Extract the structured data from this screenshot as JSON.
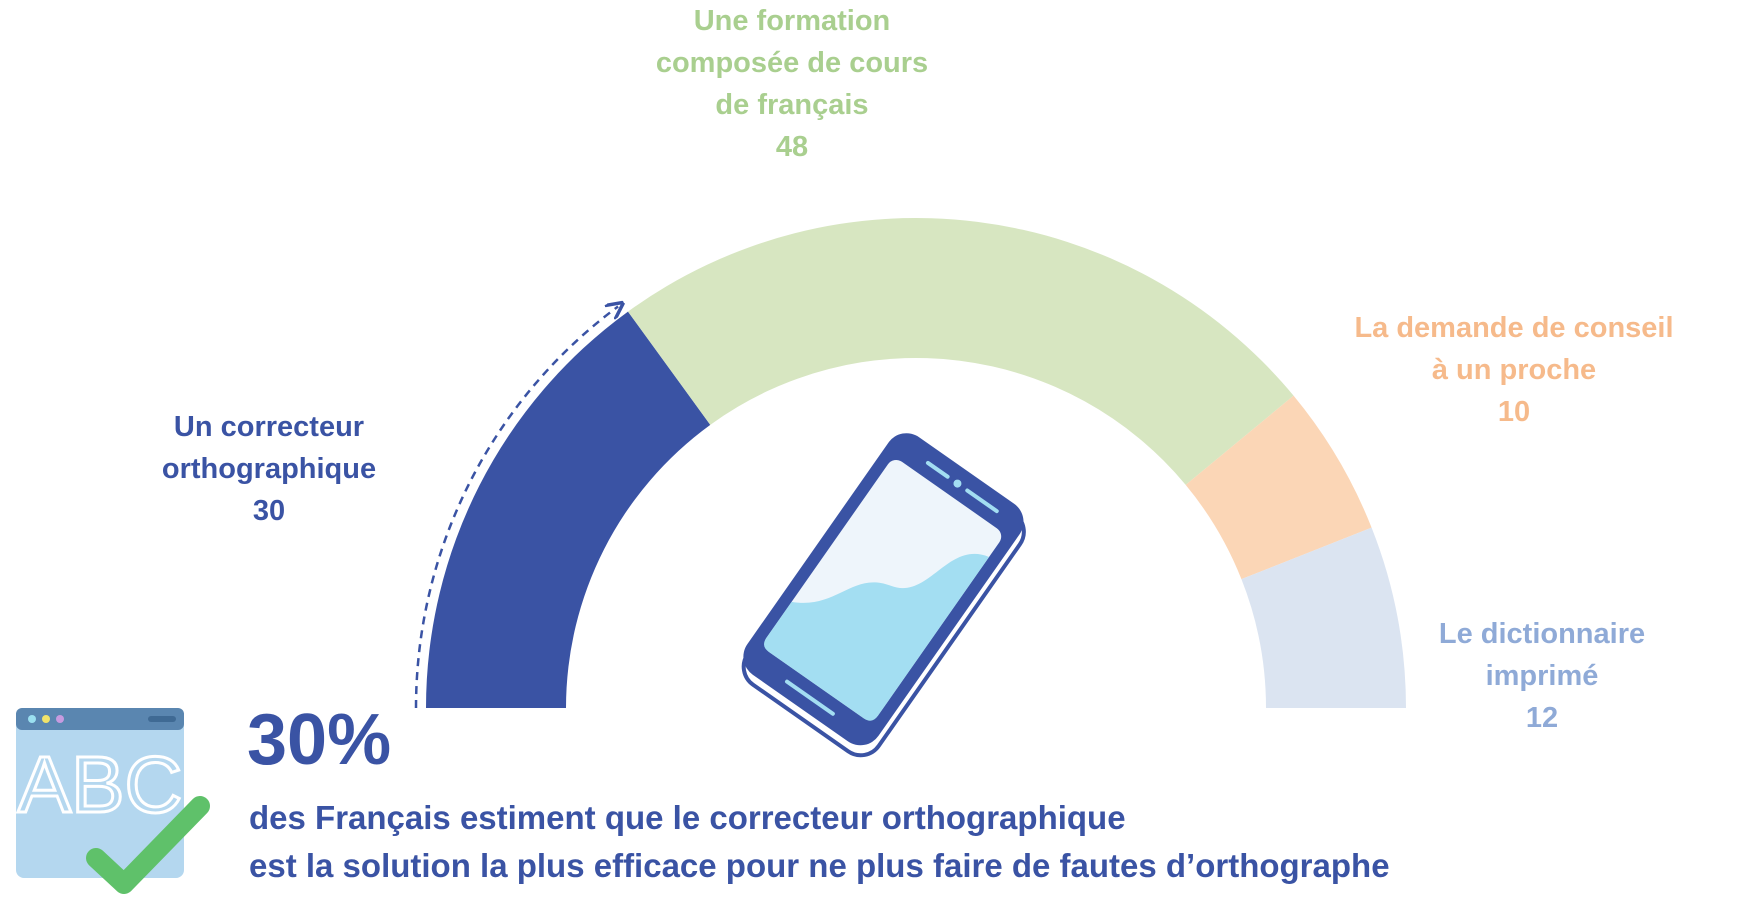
{
  "chart_data": {
    "type": "semi-donut",
    "categories": [
      "Un correcteur orthographique",
      "Une formation composée de cours de français",
      "La demande de conseil à un proche",
      "Le dictionnaire imprimé"
    ],
    "values": [
      30,
      48,
      10,
      12
    ],
    "colors": [
      "#3a53a4",
      "#d7e6c1",
      "#fbd6b6",
      "#dbe4f1"
    ],
    "label_colors": [
      "#3a53a4",
      "#a9cf8f",
      "#f6ba8b",
      "#8faad7"
    ]
  },
  "headline": "30%",
  "caption": [
    "des Français estiment que le correcteur orthographique",
    "est la solution la plus efficace pour ne plus faire de fautes d’orthographe"
  ],
  "icon_text": "ABC"
}
